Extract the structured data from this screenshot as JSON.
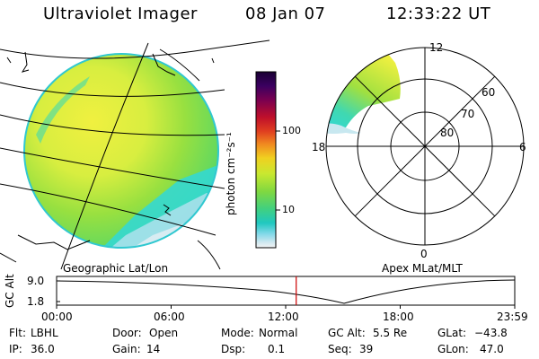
{
  "header": {
    "title": "Ultraviolet Imager",
    "date": "08 Jan 07",
    "time": "12:33:22 UT"
  },
  "colorbar": {
    "label": "photon cm⁻²s⁻¹",
    "ticks": [
      "100",
      "10"
    ],
    "scale": "log",
    "colors": [
      "#1a0033",
      "#3a0060",
      "#7a0050",
      "#c0102a",
      "#e04020",
      "#f08820",
      "#f0d020",
      "#c8e830",
      "#80d840",
      "#40d080",
      "#20c8c0",
      "#80d8e8",
      "#d0e8f0",
      "#f4f4f4"
    ]
  },
  "left_panel": {
    "caption": "Geographic Lat/Lon",
    "colors": {
      "yellow": "#e8f040",
      "green": "#90e040",
      "cyan": "#30d8d8",
      "light": "#c8e8f0"
    }
  },
  "right_panel": {
    "caption": "Apex  MLat/MLT",
    "mlt_labels": {
      "top": "12",
      "bottom": "0",
      "left": "18",
      "right": "6"
    },
    "mlat_labels": [
      "60",
      "70",
      "80"
    ]
  },
  "orbit_plot": {
    "ylabel": "GC Alt",
    "yticks": [
      "9.0",
      "1.8"
    ],
    "xticks": [
      "00:00",
      "06:00",
      "12:00",
      "18:00",
      "23:59"
    ],
    "current_time_fraction": 0.523,
    "marker_color": "#cc0000"
  },
  "status": {
    "row1": [
      {
        "label": "Flt:",
        "value": "LBHL"
      },
      {
        "label": "Door:",
        "value": "Open"
      },
      {
        "label": "Mode:",
        "value": "Normal"
      },
      {
        "label": "GC Alt:",
        "value": "5.5 Re"
      },
      {
        "label": "GLat:",
        "value": "−43.8"
      }
    ],
    "row2": [
      {
        "label": "IP:",
        "value": "36.0"
      },
      {
        "label": "Gain:",
        "value": "14"
      },
      {
        "label": "Dsp:",
        "value": "0.1"
      },
      {
        "label": "Seq:",
        "value": "39"
      },
      {
        "label": "GLon:",
        "value": "47.0"
      }
    ]
  }
}
